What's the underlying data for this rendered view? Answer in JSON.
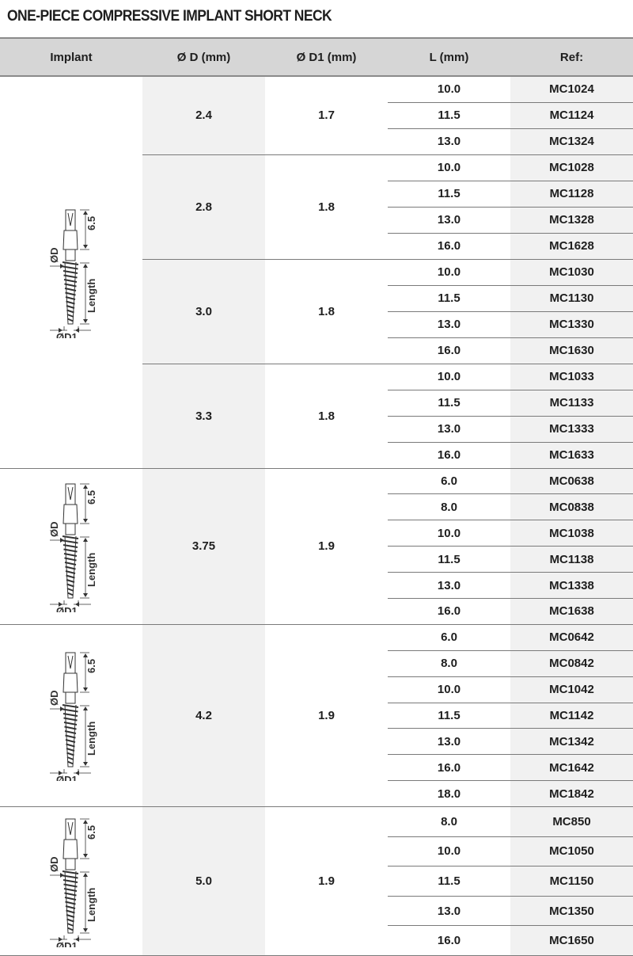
{
  "title": "ONE-PIECE COMPRESSIVE IMPLANT SHORT NECK",
  "headers": [
    "Implant",
    "Ø D (mm)",
    "Ø D1 (mm)",
    "L (mm)",
    "Ref:"
  ],
  "diagram_labels": {
    "neck": "6.5",
    "d": "ØD",
    "length": "Length",
    "d1": "ØD1"
  },
  "implants": [
    {
      "groups": [
        {
          "d": "2.4",
          "d1": "1.7",
          "rows": [
            {
              "l": "10.0",
              "ref": "MC1024"
            },
            {
              "l": "11.5",
              "ref": "MC1124"
            },
            {
              "l": "13.0",
              "ref": "MC1324"
            }
          ]
        },
        {
          "d": "2.8",
          "d1": "1.8",
          "rows": [
            {
              "l": "10.0",
              "ref": "MC1028"
            },
            {
              "l": "11.5",
              "ref": "MC1128"
            },
            {
              "l": "13.0",
              "ref": "MC1328"
            },
            {
              "l": "16.0",
              "ref": "MC1628"
            }
          ]
        },
        {
          "d": "3.0",
          "d1": "1.8",
          "rows": [
            {
              "l": "10.0",
              "ref": "MC1030"
            },
            {
              "l": "11.5",
              "ref": "MC1130"
            },
            {
              "l": "13.0",
              "ref": "MC1330"
            },
            {
              "l": "16.0",
              "ref": "MC1630"
            }
          ]
        },
        {
          "d": "3.3",
          "d1": "1.8",
          "rows": [
            {
              "l": "10.0",
              "ref": "MC1033"
            },
            {
              "l": "11.5",
              "ref": "MC1133"
            },
            {
              "l": "13.0",
              "ref": "MC1333"
            },
            {
              "l": "16.0",
              "ref": "MC1633"
            }
          ]
        }
      ]
    },
    {
      "groups": [
        {
          "d": "3.75",
          "d1": "1.9",
          "rows": [
            {
              "l": "6.0",
              "ref": "MC0638"
            },
            {
              "l": "8.0",
              "ref": "MC0838"
            },
            {
              "l": "10.0",
              "ref": "MC1038"
            },
            {
              "l": "11.5",
              "ref": "MC1138"
            },
            {
              "l": "13.0",
              "ref": "MC1338"
            },
            {
              "l": "16.0",
              "ref": "MC1638"
            }
          ]
        }
      ]
    },
    {
      "groups": [
        {
          "d": "4.2",
          "d1": "1.9",
          "rows": [
            {
              "l": "6.0",
              "ref": "MC0642"
            },
            {
              "l": "8.0",
              "ref": "MC0842"
            },
            {
              "l": "10.0",
              "ref": "MC1042"
            },
            {
              "l": "11.5",
              "ref": "MC1142"
            },
            {
              "l": "13.0",
              "ref": "MC1342"
            },
            {
              "l": "16.0",
              "ref": "MC1642"
            },
            {
              "l": "18.0",
              "ref": "MC1842"
            }
          ]
        }
      ]
    },
    {
      "groups": [
        {
          "d": "5.0",
          "d1": "1.9",
          "rows": [
            {
              "l": "8.0",
              "ref": "MC850"
            },
            {
              "l": "10.0",
              "ref": "MC1050"
            },
            {
              "l": "11.5",
              "ref": "MC1150"
            },
            {
              "l": "13.0",
              "ref": "MC1350"
            },
            {
              "l": "16.0",
              "ref": "MC1650"
            }
          ]
        }
      ]
    }
  ]
}
